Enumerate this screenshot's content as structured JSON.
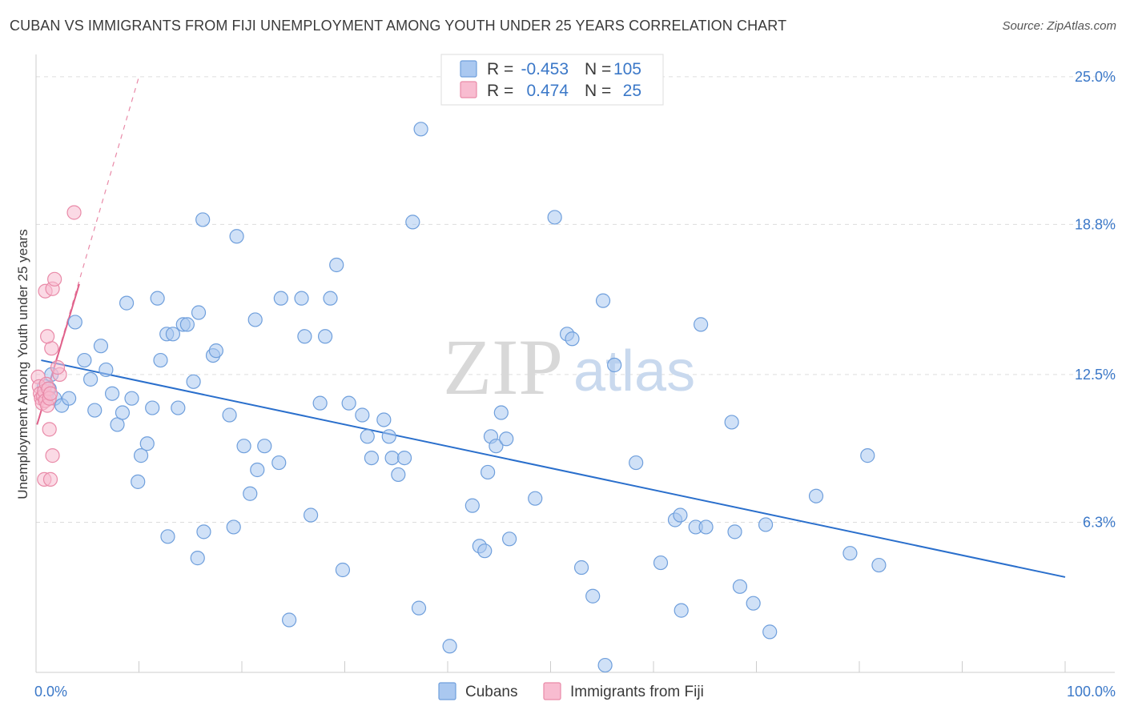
{
  "header": {
    "title": "CUBAN VS IMMIGRANTS FROM FIJI UNEMPLOYMENT AMONG YOUTH UNDER 25 YEARS CORRELATION CHART",
    "source": "Source: ZipAtlas.com"
  },
  "watermark": {
    "zip": "ZIP",
    "atlas": "atlas"
  },
  "colors": {
    "cubans_fill": "#aac8f0",
    "cubans_stroke": "#6f9fdc",
    "cubans_line": "#2a6fcc",
    "fiji_fill": "#f8bcd0",
    "fiji_stroke": "#e98aa8",
    "fiji_line": "#e0608a",
    "accent_text": "#3b78c8",
    "grid": "#dddddd"
  },
  "legend": {
    "rows": [
      {
        "r_label": "R =",
        "r_value": "-0.453",
        "n_label": "N =",
        "n_value": "105"
      },
      {
        "r_label": "R =",
        "r_value": "0.474",
        "n_label": "N =",
        "n_value": "25"
      }
    ]
  },
  "bottom_legend": {
    "series1": "Cubans",
    "series2": "Immigrants from Fiji"
  },
  "chart_data": {
    "type": "scatter",
    "title": "CUBAN VS IMMIGRANTS FROM FIJI UNEMPLOYMENT AMONG YOUTH UNDER 25 YEARS CORRELATION CHART",
    "xlabel": "",
    "ylabel": "Unemployment Among Youth under 25 years",
    "xlim": [
      0,
      100
    ],
    "ylim": [
      0,
      25.8
    ],
    "x_tick_labels": {
      "left": "0.0%",
      "right": "100.0%"
    },
    "y_ticks": [
      {
        "value": 6.3,
        "label": "6.3%"
      },
      {
        "value": 12.5,
        "label": "12.5%"
      },
      {
        "value": 18.8,
        "label": "18.8%"
      },
      {
        "value": 25.0,
        "label": "25.0%"
      }
    ],
    "series": [
      {
        "name": "Cubans",
        "R": -0.453,
        "N": 105,
        "trend": {
          "x": [
            0.5,
            100
          ],
          "y": [
            13.1,
            4.0
          ]
        },
        "points": [
          [
            0.8,
            12.0
          ],
          [
            1.3,
            11.9
          ],
          [
            1.0,
            11.6
          ],
          [
            1.8,
            11.5
          ],
          [
            2.5,
            11.2
          ],
          [
            3.2,
            11.5
          ],
          [
            1.5,
            12.5
          ],
          [
            3.8,
            14.7
          ],
          [
            4.7,
            13.1
          ],
          [
            5.3,
            12.3
          ],
          [
            5.7,
            11.0
          ],
          [
            6.3,
            13.7
          ],
          [
            6.8,
            12.7
          ],
          [
            7.4,
            11.7
          ],
          [
            7.9,
            10.4
          ],
          [
            8.4,
            10.9
          ],
          [
            8.8,
            15.5
          ],
          [
            9.3,
            11.5
          ],
          [
            9.9,
            8.0
          ],
          [
            10.2,
            9.1
          ],
          [
            10.8,
            9.6
          ],
          [
            11.3,
            11.1
          ],
          [
            11.8,
            15.7
          ],
          [
            12.1,
            13.1
          ],
          [
            12.7,
            14.2
          ],
          [
            13.3,
            14.2
          ],
          [
            13.8,
            11.1
          ],
          [
            14.3,
            14.6
          ],
          [
            14.7,
            14.6
          ],
          [
            15.3,
            12.2
          ],
          [
            15.8,
            15.1
          ],
          [
            16.2,
            19.0
          ],
          [
            16.3,
            5.9
          ],
          [
            15.7,
            4.8
          ],
          [
            17.2,
            13.3
          ],
          [
            17.5,
            13.5
          ],
          [
            18.8,
            10.8
          ],
          [
            19.2,
            6.1
          ],
          [
            19.5,
            18.3
          ],
          [
            20.2,
            9.5
          ],
          [
            20.8,
            7.5
          ],
          [
            21.3,
            14.8
          ],
          [
            21.5,
            8.5
          ],
          [
            22.2,
            9.5
          ],
          [
            23.6,
            8.8
          ],
          [
            23.8,
            15.7
          ],
          [
            24.6,
            2.2
          ],
          [
            25.8,
            15.7
          ],
          [
            26.1,
            14.1
          ],
          [
            26.7,
            6.6
          ],
          [
            27.6,
            11.3
          ],
          [
            28.1,
            14.1
          ],
          [
            28.6,
            15.7
          ],
          [
            29.2,
            17.1
          ],
          [
            29.8,
            4.3
          ],
          [
            30.4,
            11.3
          ],
          [
            31.7,
            10.8
          ],
          [
            32.2,
            9.9
          ],
          [
            32.6,
            9.0
          ],
          [
            33.8,
            10.6
          ],
          [
            34.3,
            9.9
          ],
          [
            34.6,
            9.0
          ],
          [
            35.2,
            8.3
          ],
          [
            35.8,
            9.0
          ],
          [
            36.6,
            18.9
          ],
          [
            37.2,
            2.7
          ],
          [
            37.4,
            22.8
          ],
          [
            40.2,
            1.1
          ],
          [
            42.4,
            7.0
          ],
          [
            43.1,
            5.3
          ],
          [
            43.6,
            5.1
          ],
          [
            43.9,
            8.4
          ],
          [
            44.2,
            9.9
          ],
          [
            44.7,
            9.5
          ],
          [
            45.2,
            10.9
          ],
          [
            45.7,
            9.8
          ],
          [
            46.0,
            5.6
          ],
          [
            48.5,
            7.3
          ],
          [
            50.4,
            19.1
          ],
          [
            51.6,
            14.2
          ],
          [
            52.1,
            14.0
          ],
          [
            53.0,
            4.4
          ],
          [
            54.1,
            3.2
          ],
          [
            55.1,
            15.6
          ],
          [
            56.2,
            12.9
          ],
          [
            58.3,
            8.8
          ],
          [
            60.7,
            4.6
          ],
          [
            62.1,
            6.4
          ],
          [
            62.6,
            6.6
          ],
          [
            62.7,
            2.6
          ],
          [
            64.1,
            6.1
          ],
          [
            64.6,
            14.6
          ],
          [
            65.1,
            6.1
          ],
          [
            67.6,
            10.5
          ],
          [
            67.9,
            5.9
          ],
          [
            68.4,
            3.6
          ],
          [
            69.7,
            2.9
          ],
          [
            70.9,
            6.2
          ],
          [
            71.3,
            1.7
          ],
          [
            75.8,
            7.4
          ],
          [
            79.1,
            5.0
          ],
          [
            80.8,
            9.1
          ],
          [
            81.9,
            4.5
          ],
          [
            55.3,
            0.3
          ],
          [
            12.8,
            5.7
          ]
        ]
      },
      {
        "name": "Immigrants from Fiji",
        "R": 0.474,
        "N": 25,
        "trend": {
          "x": [
            0.1,
            4.2
          ],
          "y": [
            10.4,
            16.3
          ]
        },
        "trend_extended": {
          "x": [
            0.1,
            10.0
          ],
          "y": [
            10.4,
            25.0
          ]
        },
        "points": [
          [
            0.2,
            12.4
          ],
          [
            0.3,
            12.0
          ],
          [
            0.4,
            11.7
          ],
          [
            0.5,
            11.5
          ],
          [
            0.6,
            11.3
          ],
          [
            0.7,
            11.6
          ],
          [
            0.8,
            11.8
          ],
          [
            0.9,
            11.4
          ],
          [
            1.0,
            12.1
          ],
          [
            1.1,
            11.2
          ],
          [
            1.2,
            11.9
          ],
          [
            1.3,
            11.5
          ],
          [
            1.4,
            11.7
          ],
          [
            0.9,
            16.0
          ],
          [
            1.6,
            16.1
          ],
          [
            1.8,
            16.5
          ],
          [
            2.3,
            12.5
          ],
          [
            2.1,
            12.8
          ],
          [
            1.3,
            10.2
          ],
          [
            1.6,
            9.1
          ],
          [
            0.8,
            8.1
          ],
          [
            1.4,
            8.1
          ],
          [
            1.5,
            13.6
          ],
          [
            1.1,
            14.1
          ],
          [
            3.7,
            19.3
          ]
        ]
      }
    ]
  }
}
